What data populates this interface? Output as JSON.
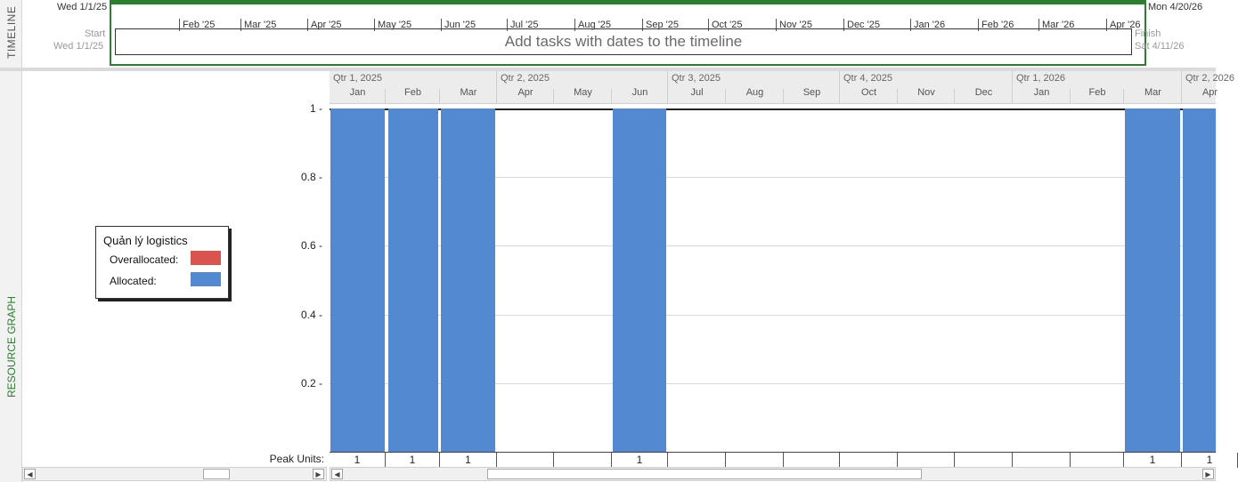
{
  "timeline": {
    "side_label": "TIMELINE",
    "start_top": "Wed 1/1/25",
    "start_label": "Start",
    "start_date": "Wed 1/1/25",
    "finish_top": "Mon 4/20/26",
    "finish_label": "Finish",
    "finish_date": "Sat 4/11/26",
    "months": [
      "Feb '25",
      "Mar '25",
      "Apr '25",
      "May '25",
      "Jun '25",
      "Jul '25",
      "Aug '25",
      "Sep '25",
      "Oct '25",
      "Nov '25",
      "Dec '25",
      "Jan '26",
      "Feb '26",
      "Mar '26",
      "Apr '26"
    ],
    "placeholder": "Add tasks with dates to the timeline"
  },
  "resource_graph": {
    "side_label": "RESOURCE GRAPH",
    "legend": {
      "title": "Quản lý logistics",
      "overallocated": "Overallocated:",
      "allocated": "Allocated:"
    },
    "colors": {
      "overallocated": "#d9534f",
      "allocated": "#5289d0"
    },
    "quarters": [
      "Qtr 1, 2025",
      "Qtr 2, 2025",
      "Qtr 3, 2025",
      "Qtr 4, 2025",
      "Qtr 1, 2026",
      "Qtr 2, 2026"
    ],
    "peak_label": "Peak Units:"
  },
  "chart_data": {
    "type": "bar",
    "categories": [
      "Jan",
      "Feb",
      "Mar",
      "Apr",
      "May",
      "Jun",
      "Jul",
      "Aug",
      "Sep",
      "Oct",
      "Nov",
      "Dec",
      "Jan",
      "Feb",
      "Mar",
      "Apr"
    ],
    "values": [
      1,
      1,
      1,
      0,
      0,
      1,
      0,
      0,
      0,
      0,
      0,
      0,
      0,
      0,
      1,
      1
    ],
    "peak_units": [
      "1",
      "1",
      "1",
      "",
      "",
      "1",
      "",
      "",
      "",
      "",
      "",
      "",
      "",
      "",
      "1",
      "1"
    ],
    "yticks": [
      "1",
      "0.8",
      "0.6",
      "0.4",
      "0.2"
    ],
    "ylim": [
      0,
      1
    ],
    "series": [
      {
        "name": "Allocated",
        "values": [
          1,
          1,
          1,
          0,
          0,
          1,
          0,
          0,
          0,
          0,
          0,
          0,
          0,
          0,
          1,
          1
        ]
      }
    ]
  }
}
